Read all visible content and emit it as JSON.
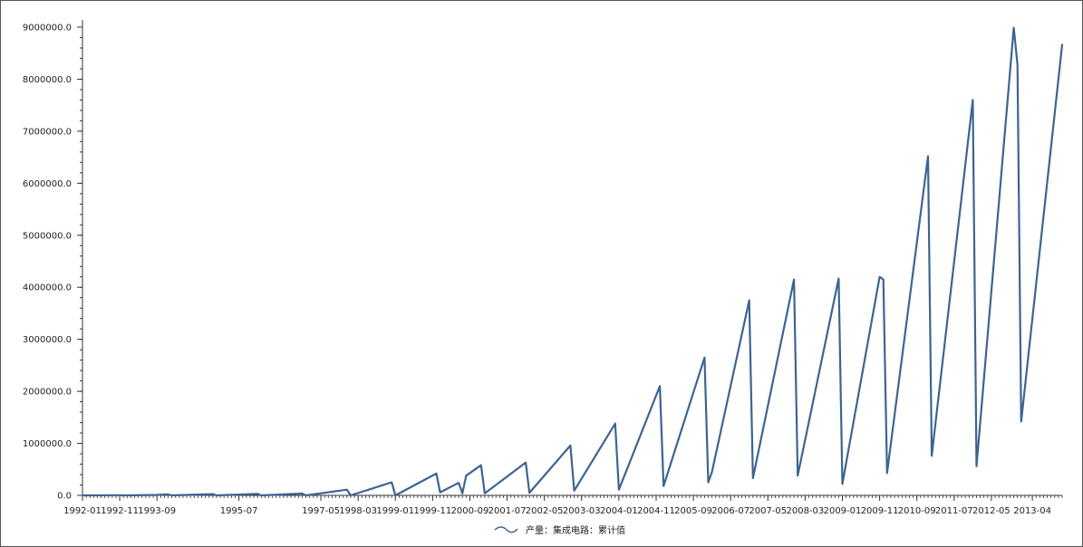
{
  "chart_data": {
    "type": "line",
    "series": [
      {
        "name": "产量：集成电路：累计值",
        "color": "#3d6492",
        "points": [
          [
            "1992-01",
            0
          ],
          [
            "1992-11",
            3000
          ],
          [
            "1993-01",
            0
          ],
          [
            "1993-09",
            8000
          ],
          [
            "1993-12",
            20000
          ],
          [
            "1994-01",
            0
          ],
          [
            "1994-12",
            25000
          ],
          [
            "1995-01",
            0
          ],
          [
            "1995-12",
            30000
          ],
          [
            "1996-01",
            0
          ],
          [
            "1996-12",
            35000
          ],
          [
            "1997-01",
            0
          ],
          [
            "1997-12",
            110000
          ],
          [
            "1998-01",
            0
          ],
          [
            "1998-12",
            250000
          ],
          [
            "1999-01",
            0
          ],
          [
            "1999-12",
            420000
          ],
          [
            "2000-01",
            60000
          ],
          [
            "2000-06",
            240000
          ],
          [
            "2000-07",
            40000
          ],
          [
            "2000-08",
            380000
          ],
          [
            "2000-12",
            580000
          ],
          [
            "2001-01",
            40000
          ],
          [
            "2001-12",
            630000
          ],
          [
            "2002-01",
            50000
          ],
          [
            "2002-12",
            960000
          ],
          [
            "2003-01",
            90000
          ],
          [
            "2003-12",
            1380000
          ],
          [
            "2004-01",
            110000
          ],
          [
            "2004-12",
            2100000
          ],
          [
            "2005-01",
            180000
          ],
          [
            "2005-12",
            2650000
          ],
          [
            "2006-01",
            250000
          ],
          [
            "2006-02",
            450000
          ],
          [
            "2006-12",
            3750000
          ],
          [
            "2007-01",
            330000
          ],
          [
            "2007-12",
            4150000
          ],
          [
            "2008-01",
            380000
          ],
          [
            "2008-12",
            4170000
          ],
          [
            "2009-01",
            220000
          ],
          [
            "2009-02",
            620000
          ],
          [
            "2009-11",
            4200000
          ],
          [
            "2009-12",
            4150000
          ],
          [
            "2010-01",
            430000
          ],
          [
            "2010-12",
            6520000
          ],
          [
            "2011-01",
            760000
          ],
          [
            "2011-12",
            7600000
          ],
          [
            "2012-01",
            560000
          ],
          [
            "2012-11",
            8990000
          ],
          [
            "2012-12",
            8280000
          ],
          [
            "2013-01",
            1420000
          ],
          [
            "2013-12",
            8660000
          ]
        ]
      }
    ],
    "x_tick_labels": [
      "1992-01",
      "1992-11",
      "1993-09",
      "1995-07",
      "1997-05",
      "1998-03",
      "1999-01",
      "1999-11",
      "2000-09",
      "2001-07",
      "2002-05",
      "2003-03",
      "2004-01",
      "2004-11",
      "2005-09",
      "2006-07",
      "2007-05",
      "2008-03",
      "2009-01",
      "2009-11",
      "2010-09",
      "2011-07",
      "2012-05",
      "2013-04"
    ],
    "y_ticks": [
      "0.0",
      "1000000.0",
      "2000000.0",
      "3000000.0",
      "4000000.0",
      "5000000.0",
      "6000000.0",
      "7000000.0",
      "8000000.0",
      "9000000.0"
    ],
    "ylim": [
      0,
      9000000
    ],
    "xlim": [
      "1992-01",
      "2013-12"
    ],
    "legend_position": "bottom-center",
    "grid": false,
    "title": "",
    "xlabel": "",
    "ylabel": ""
  }
}
